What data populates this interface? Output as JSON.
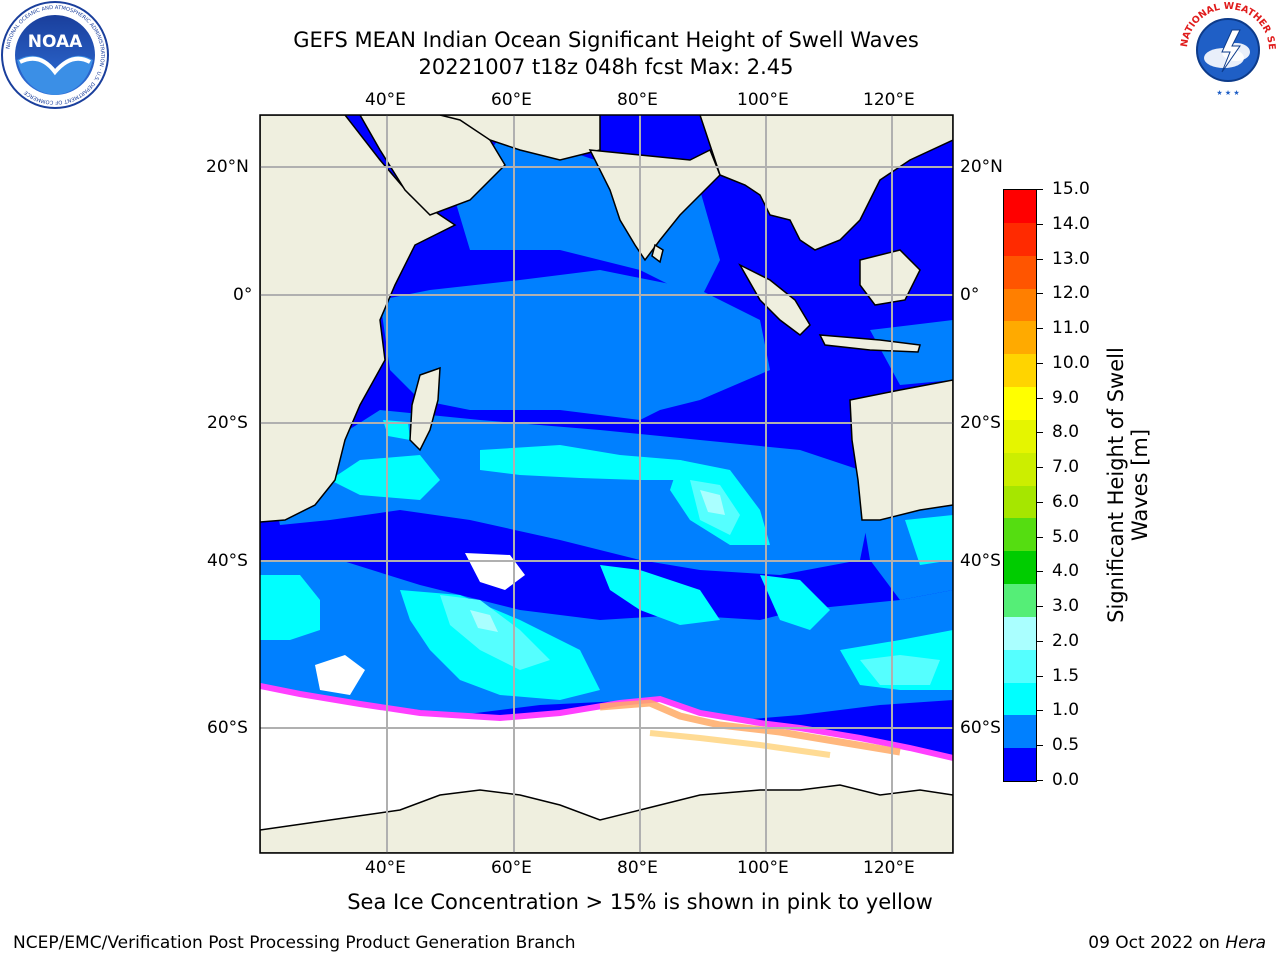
{
  "title": {
    "line1": "GEFS MEAN Indian Ocean Significant Height of Swell Waves",
    "line2": "20221007 t18z 048h fcst   Max: 2.45"
  },
  "map": {
    "lon_labels": [
      "40°E",
      "60°E",
      "80°E",
      "100°E",
      "120°E"
    ],
    "lat_labels_left": [
      "20°N",
      "0°",
      "20°S",
      "40°S",
      "60°S"
    ],
    "lat_labels_right": [
      "20°N",
      "0°",
      "20°S",
      "40°S",
      "60°S"
    ]
  },
  "colorbar": {
    "label": "Significant Height of Swell Waves [m]",
    "ticks": [
      "15.0",
      "14.0",
      "13.0",
      "12.0",
      "11.0",
      "10.0",
      "9.0",
      "8.0",
      "7.0",
      "6.0",
      "5.0",
      "4.0",
      "3.0",
      "2.0",
      "1.5",
      "1.0",
      "0.5",
      "0.0"
    ],
    "colors_top_to_bottom": [
      "#ff0000",
      "#ff2a00",
      "#ff5500",
      "#ff7f00",
      "#ffaa00",
      "#ffd400",
      "#ffff00",
      "#e5f500",
      "#ccee00",
      "#a6e600",
      "#55dd11",
      "#00cc00",
      "#55ee77",
      "#aaffff",
      "#55ffff",
      "#00ffff",
      "#0080ff",
      "#0000ff"
    ]
  },
  "caption": "Sea Ice Concentration > 15% is shown in pink to yellow",
  "footer": {
    "left": "NCEP/EMC/Verification Post Processing Product Generation Branch",
    "date": "09 Oct 2022 on ",
    "host": "Hera"
  },
  "logos": {
    "noaa_text": "NOAA",
    "noaa_ring": "NATIONAL OCEANIC AND ATMOSPHERIC ADMINISTRATION · U.S. DEPARTMENT OF COMMERCE",
    "nws_ring": "NATIONAL WEATHER SERVICE"
  }
}
